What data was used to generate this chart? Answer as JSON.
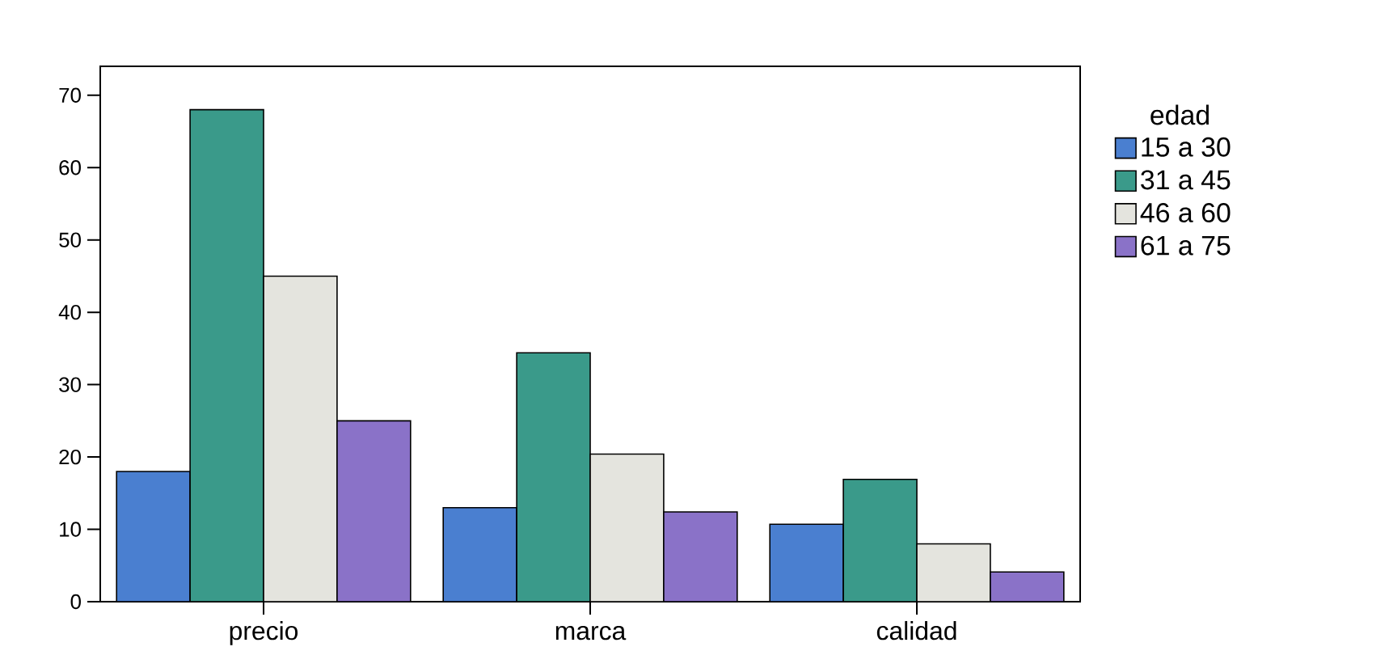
{
  "chart_data": {
    "type": "bar",
    "categories": [
      "precio",
      "marca",
      "calidad"
    ],
    "legend_title": "edad",
    "legend": "right",
    "grid": false,
    "ylim": [
      0,
      74
    ],
    "yticks": [
      0,
      10,
      20,
      30,
      40,
      50,
      60,
      70
    ],
    "series": [
      {
        "name": "15 a 30",
        "color": "#4a7fd0",
        "values": [
          18,
          13,
          10.7
        ]
      },
      {
        "name": "31 a 45",
        "color": "#3a9a8a",
        "values": [
          68,
          34.4,
          16.9
        ]
      },
      {
        "name": "46 a 60",
        "color": "#e4e4de",
        "values": [
          45,
          20.4,
          8
        ]
      },
      {
        "name": "61 a 75",
        "color": "#8a72c8",
        "values": [
          25,
          12.4,
          4.1
        ]
      }
    ]
  }
}
